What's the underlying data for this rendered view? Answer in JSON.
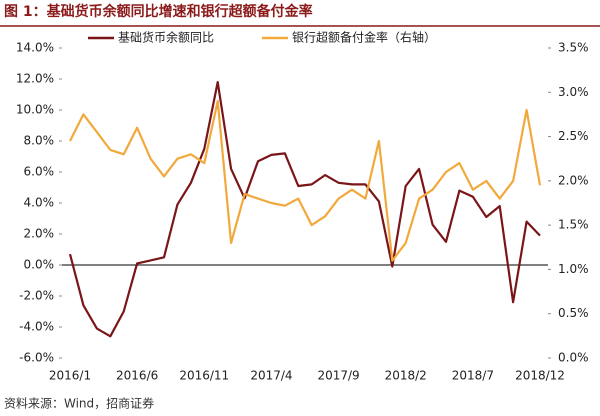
{
  "chart_data": {
    "type": "line",
    "title": "图 1：基础货币余额同比增速和银行超额备付金率",
    "source": "资料来源：Wind，招商证券",
    "categories": [
      "2016/1",
      null,
      null,
      null,
      null,
      "2016/6",
      null,
      null,
      null,
      null,
      "2016/11",
      null,
      null,
      null,
      null,
      "2017/4",
      null,
      null,
      null,
      null,
      "2017/9",
      null,
      null,
      null,
      null,
      "2018/2",
      null,
      null,
      null,
      null,
      "2018/7",
      null,
      null,
      null,
      null,
      "2018/12"
    ],
    "series": [
      {
        "name": "基础货币余额同比",
        "color": "#7a1518",
        "values": [
          0.7,
          -2.6,
          -4.1,
          -4.6,
          -3.0,
          0.1,
          0.3,
          0.5,
          3.9,
          5.3,
          7.5,
          11.8,
          6.2,
          4.3,
          6.7,
          7.1,
          7.2,
          5.1,
          5.2,
          5.8,
          5.3,
          5.2,
          5.2,
          4.1,
          -0.1,
          5.1,
          6.2,
          2.6,
          1.5,
          4.8,
          4.4,
          3.1,
          3.8,
          -2.4,
          2.8,
          1.9
        ]
      },
      {
        "name": "银行超额备付金率（右轴）",
        "color": "#f2a93b",
        "axis": "y2",
        "values": [
          2.45,
          2.75,
          2.55,
          2.35,
          2.3,
          2.6,
          2.25,
          2.05,
          2.25,
          2.3,
          2.2,
          2.9,
          1.3,
          1.85,
          1.8,
          1.75,
          1.72,
          1.8,
          1.5,
          1.6,
          1.8,
          1.9,
          1.8,
          2.45,
          1.1,
          1.3,
          1.8,
          1.9,
          2.1,
          2.2,
          1.9,
          2.0,
          1.8,
          2.0,
          2.8,
          1.95
        ]
      }
    ],
    "ylim": [
      -6,
      14
    ],
    "yticks": [
      {
        "value": -6,
        "label": "-6.0%"
      },
      {
        "value": -4,
        "label": "-4.0%"
      },
      {
        "value": -2,
        "label": "-2.0%"
      },
      {
        "value": 0,
        "label": "0.0%"
      },
      {
        "value": 2,
        "label": "2.0%"
      },
      {
        "value": 4,
        "label": "4.0%"
      },
      {
        "value": 6,
        "label": "6.0%"
      },
      {
        "value": 8,
        "label": "8.0%"
      },
      {
        "value": 10,
        "label": "10.0%"
      },
      {
        "value": 12,
        "label": "12.0%"
      },
      {
        "value": 14,
        "label": "14.0%"
      }
    ],
    "y2lim": [
      0,
      3.5
    ],
    "y2ticks": [
      {
        "value": 0,
        "label": "0.0%"
      },
      {
        "value": 0.5,
        "label": "0.5%"
      },
      {
        "value": 1,
        "label": "1.0%"
      },
      {
        "value": 1.5,
        "label": "1.5%"
      },
      {
        "value": 2,
        "label": "2.0%"
      },
      {
        "value": 2.5,
        "label": "2.5%"
      },
      {
        "value": 3,
        "label": "3.0%"
      },
      {
        "value": 3.5,
        "label": "3.5%"
      }
    ]
  }
}
